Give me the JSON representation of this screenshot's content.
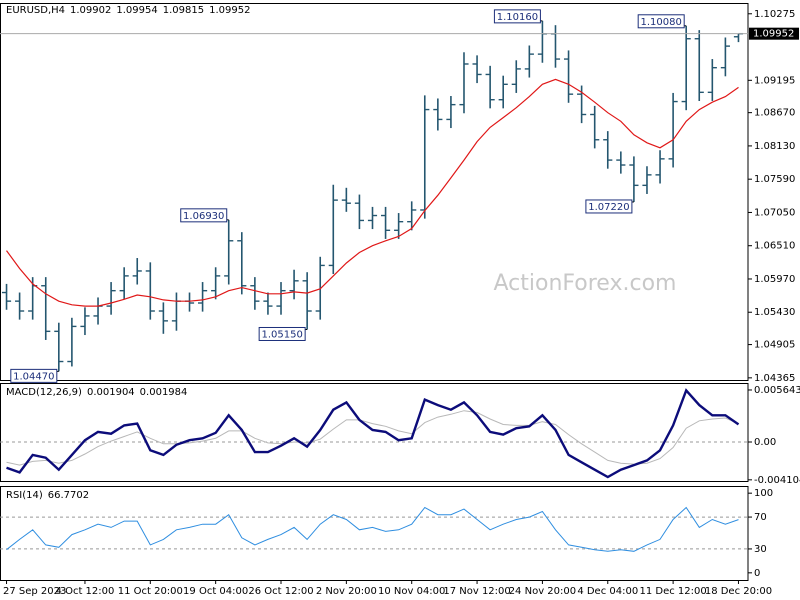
{
  "chart_data": [
    {
      "type": "ohlc",
      "symbol": "EURUSD,H4",
      "watermark": "ActionForex.com",
      "color": "#24566f",
      "categories": [
        "27 Sep 2023",
        null,
        null,
        null,
        null,
        null,
        "4 Oct 12:00",
        null,
        null,
        null,
        null,
        "11 Oct 20:00",
        null,
        null,
        null,
        null,
        "19 Oct 04:00",
        null,
        null,
        null,
        null,
        "26 Oct 12:00",
        null,
        null,
        null,
        null,
        "2 Nov 20:00",
        null,
        null,
        null,
        null,
        "10 Nov 04:00",
        null,
        null,
        null,
        null,
        "17 Nov 12:00",
        null,
        null,
        null,
        null,
        "24 Nov 20:00",
        null,
        null,
        null,
        null,
        "4 Dec 04:00",
        null,
        null,
        null,
        null,
        "11 Dec 12:00",
        null,
        null,
        null,
        null,
        "18 Dec 20:00"
      ],
      "open": [
        1.0575,
        1.0561,
        1.0545,
        1.0586,
        1.0512,
        1.0463,
        1.052,
        1.0537,
        1.0553,
        1.0578,
        1.0602,
        1.061,
        1.0545,
        1.0529,
        1.0561,
        1.0558,
        1.0578,
        1.0602,
        1.0659,
        1.0586,
        1.0561,
        1.0553,
        1.0578,
        1.0594,
        1.0545,
        1.0619,
        1.0725,
        1.072,
        1.0692,
        1.07,
        1.0676,
        1.069,
        1.0709,
        1.0872,
        1.0856,
        1.088,
        1.0946,
        1.0929,
        1.0888,
        1.0913,
        1.0938,
        1.0962,
        1.0995,
        1.0954,
        1.0897,
        1.0864,
        1.0823,
        1.079,
        1.0782,
        1.0749,
        1.0766,
        1.0792,
        1.0885,
        1.0987,
        1.09,
        1.094,
        1.09902
      ],
      "high": [
        1.0589,
        1.0575,
        1.06,
        1.06,
        1.0526,
        1.0534,
        1.0551,
        1.0567,
        1.0592,
        1.0616,
        1.0631,
        1.0624,
        1.0559,
        1.0575,
        1.0575,
        1.0592,
        1.0616,
        1.0693,
        1.0673,
        1.06,
        1.0575,
        1.0592,
        1.0612,
        1.0608,
        1.0633,
        1.075,
        1.0745,
        1.0734,
        1.0714,
        1.0714,
        1.0704,
        1.0723,
        1.0895,
        1.089,
        1.0894,
        1.0965,
        1.096,
        1.0943,
        1.0927,
        1.0952,
        1.0976,
        1.1016,
        1.1009,
        1.0968,
        1.0911,
        1.0878,
        1.0837,
        1.0804,
        1.0796,
        1.078,
        1.0806,
        1.0899,
        1.1008,
        1.1001,
        1.0954,
        1.0989,
        1.09954
      ],
      "low": [
        1.0547,
        1.0531,
        1.0531,
        1.0498,
        1.0447,
        1.0455,
        1.0506,
        1.0523,
        1.0539,
        1.0564,
        1.0588,
        1.0531,
        1.0508,
        1.0513,
        1.0544,
        1.0544,
        1.0564,
        1.0588,
        1.0572,
        1.0547,
        1.0539,
        1.0539,
        1.0564,
        1.0515,
        1.0531,
        1.0605,
        1.0706,
        1.0678,
        1.0678,
        1.0662,
        1.0662,
        1.0676,
        1.0695,
        1.0838,
        1.0842,
        1.0866,
        1.0915,
        1.0874,
        1.0874,
        1.0899,
        1.0924,
        1.0948,
        1.094,
        1.0883,
        1.085,
        1.0809,
        1.0776,
        1.0768,
        1.0722,
        1.0735,
        1.0752,
        1.0778,
        1.0871,
        1.0886,
        1.0886,
        1.0926,
        1.09815
      ],
      "close": [
        1.0561,
        1.0545,
        1.0586,
        1.0512,
        1.0463,
        1.052,
        1.0537,
        1.0553,
        1.0578,
        1.0602,
        1.061,
        1.0545,
        1.0529,
        1.0561,
        1.0558,
        1.0578,
        1.0602,
        1.0659,
        1.0586,
        1.0561,
        1.0553,
        1.0578,
        1.0594,
        1.0545,
        1.0619,
        1.0725,
        1.072,
        1.0692,
        1.07,
        1.0676,
        1.069,
        1.0709,
        1.0872,
        1.0856,
        1.088,
        1.0946,
        1.0929,
        1.0888,
        1.0913,
        1.0938,
        1.0962,
        1.0995,
        1.0954,
        1.0897,
        1.0864,
        1.0823,
        1.079,
        1.0782,
        1.0749,
        1.0766,
        1.0792,
        1.0885,
        1.0987,
        1.09,
        1.094,
        1.0975,
        1.09952
      ],
      "ma": {
        "color": "#e01818",
        "values": [
          1.0643,
          1.0614,
          1.0589,
          1.0573,
          1.0561,
          1.0555,
          1.0553,
          1.0553,
          1.0558,
          1.0564,
          1.0571,
          1.0568,
          1.0563,
          1.0561,
          1.0561,
          1.0563,
          1.0568,
          1.0578,
          1.0583,
          1.0578,
          1.0573,
          1.0573,
          1.0576,
          1.0574,
          1.0581,
          1.0602,
          1.0623,
          1.064,
          1.0651,
          1.0659,
          1.0666,
          1.0679,
          1.0708,
          1.0733,
          1.0761,
          1.079,
          1.082,
          1.0843,
          1.0859,
          1.0875,
          1.0893,
          1.0913,
          1.0921,
          1.0913,
          1.09,
          1.0884,
          1.0867,
          1.0853,
          1.0831,
          1.0818,
          1.081,
          1.0823,
          1.0853,
          1.0872,
          1.0884,
          1.0893,
          1.0908
        ]
      },
      "annotations": [
        {
          "value": 1.1016,
          "label": "1.10160"
        },
        {
          "value": 1.1008,
          "label": "1.10080"
        },
        {
          "value": 1.0693,
          "label": "1.06930"
        },
        {
          "value": 1.0515,
          "label": "1.05150"
        },
        {
          "value": 1.0722,
          "label": "1.07220"
        },
        {
          "value": 1.0447,
          "label": "1.04470"
        }
      ],
      "ylim": [
        1.0433,
        1.1045
      ],
      "yticks": [
        1.10275,
        1.09195,
        {
          "value": 1.0867,
          "label": "1.08670"
        },
        {
          "value": 1.0813,
          "label": "1.08130"
        },
        {
          "value": 1.0759,
          "label": "1.07590"
        },
        {
          "value": 1.0705,
          "label": "1.07050"
        },
        {
          "value": 1.0651,
          "label": "1.06510"
        },
        {
          "value": 1.0597,
          "label": "1.05970"
        },
        {
          "value": 1.0543,
          "label": "1.05430"
        },
        1.04905,
        1.04365
      ]
    },
    {
      "type": "macd",
      "title": "MACD(12,26,9)",
      "ylim": [
        -0.00423,
        0.0064
      ],
      "yticks": [
        0.005643,
        {
          "value": 0,
          "label": "0.00"
        },
        -0.004104
      ],
      "series": [
        {
          "color": "#0c0c7a",
          "values": [
            -0.0028,
            -0.0033,
            -0.0014,
            -0.0017,
            -0.003,
            -0.0014,
            0.0002,
            0.0011,
            0.0009,
            0.0018,
            0.002,
            -0.0009,
            -0.0014,
            -0.0003,
            0.0002,
            0.0004,
            0.001,
            0.0029,
            0.0013,
            -0.0011,
            -0.0011,
            -0.0004,
            0.0004,
            -0.0005,
            0.0013,
            0.0035,
            0.0043,
            0.0024,
            0.0013,
            0.0011,
            0.0002,
            0.0004,
            0.0046,
            0.004,
            0.0035,
            0.0043,
            0.0029,
            0.0011,
            0.0008,
            0.0015,
            0.0017,
            0.0029,
            0.0013,
            -0.0014,
            -0.0022,
            -0.003,
            -0.0038,
            -0.003,
            -0.0025,
            -0.002,
            -0.0009,
            0.0018,
            0.0056,
            0.004,
            0.0029,
            0.0029,
            0.001904
          ]
        },
        {
          "color": "#b8b8b8",
          "values": [
            -0.0022,
            -0.0025,
            -0.0021,
            -0.002,
            -0.0023,
            -0.002,
            -0.0013,
            -0.0005,
            0.0001,
            0.0006,
            0.0011,
            0.0004,
            -0.0002,
            -0.0002,
            -0.0001,
            0.0001,
            0.0004,
            0.0012,
            0.0012,
            0.0004,
            -0.0001,
            -0.0002,
            0.0,
            -0.0001,
            0.0003,
            0.0014,
            0.0024,
            0.0024,
            0.002,
            0.0017,
            0.0012,
            0.0009,
            0.0021,
            0.0027,
            0.003,
            0.0034,
            0.0032,
            0.0025,
            0.0019,
            0.0018,
            0.0018,
            0.0022,
            0.0019,
            0.0008,
            -0.0002,
            -0.0011,
            -0.002,
            -0.0023,
            -0.0024,
            -0.0023,
            -0.0018,
            -0.0006,
            0.0015,
            0.0023,
            0.0025,
            0.0026,
            0.001984
          ]
        }
      ]
    },
    {
      "type": "rsi",
      "title": "RSI(14)",
      "ylim": [
        -9,
        109
      ],
      "yticks": [
        100,
        70,
        30,
        0
      ],
      "levels": [
        70,
        30
      ],
      "color": "#2f8ee0",
      "values": [
        29,
        42,
        54,
        35,
        32,
        48,
        54,
        61,
        57,
        65,
        65,
        35,
        42,
        54,
        57,
        61,
        61,
        73,
        44,
        35,
        42,
        48,
        57,
        42,
        61,
        73,
        67,
        54,
        57,
        52,
        54,
        61,
        82,
        73,
        73,
        80,
        67,
        54,
        61,
        67,
        70,
        77,
        54,
        35,
        32,
        29,
        27,
        29,
        27,
        35,
        42,
        67,
        82,
        57,
        67,
        61,
        66.7702
      ]
    }
  ]
}
